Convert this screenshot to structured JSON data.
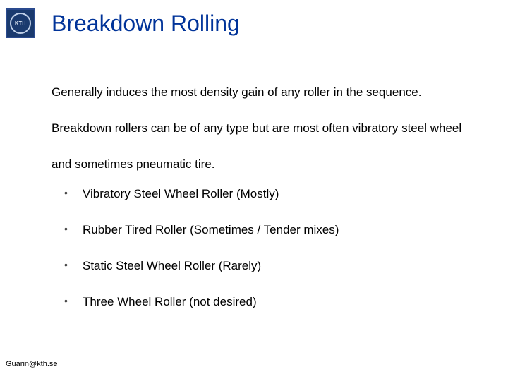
{
  "logo": {
    "text": "KTH"
  },
  "title": "Breakdown Rolling",
  "paragraph": "Generally induces the most density gain of any roller in the sequence. Breakdown rollers can be of any type but are most often vibratory steel wheel and sometimes pneumatic tire.",
  "bullets": [
    "Vibratory Steel Wheel Roller (Mostly)",
    "Rubber Tired Roller (Sometimes / Tender mixes)",
    "Static Steel Wheel Roller (Rarely)",
    "Three Wheel Roller (not desired)"
  ],
  "footer": "Guarin@kth.se"
}
